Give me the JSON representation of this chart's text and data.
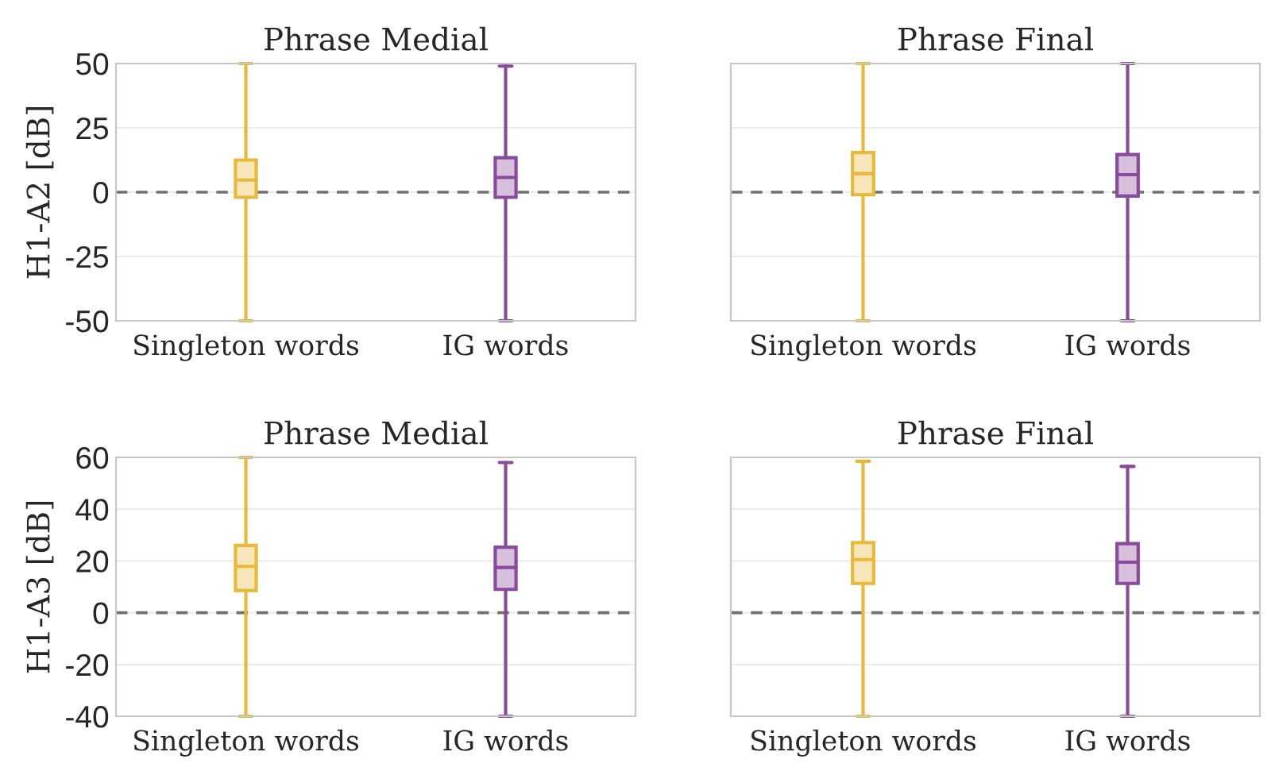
{
  "chart_data": [
    {
      "type": "box",
      "title": "Phrase Medial",
      "ylabel": "H1-A2 [dB]",
      "categories": [
        "Singleton words",
        "IG words"
      ],
      "colors": [
        "#e8b83a",
        "#8a4a9c"
      ],
      "boxes": [
        {
          "low": -50,
          "q1": -2,
          "median": 4.7,
          "q3": 12.5,
          "high": 50
        },
        {
          "low": -50,
          "q1": -2,
          "median": 5.7,
          "q3": 13.4,
          "high": 49
        }
      ],
      "ylim": [
        -50,
        50
      ],
      "yticks": [
        -50,
        -25,
        0,
        25,
        50
      ],
      "grid": "y",
      "ref_lines": [
        {
          "axis": "y",
          "value": 0,
          "color": "#707070",
          "line_style": "dashed"
        }
      ]
    },
    {
      "type": "box",
      "title": "Phrase Final",
      "categories": [
        "Singleton words",
        "IG words"
      ],
      "colors": [
        "#e8b83a",
        "#8a4a9c"
      ],
      "boxes": [
        {
          "low": -50,
          "q1": -1,
          "median": 7.2,
          "q3": 15.4,
          "high": 50
        },
        {
          "low": -50,
          "q1": -1.5,
          "median": 6.8,
          "q3": 14.6,
          "high": 50
        }
      ],
      "ylim": [
        -50,
        50
      ],
      "yticks": [
        -50,
        -25,
        0,
        25,
        50
      ],
      "grid": "y",
      "tick_labels": "x",
      "ref_lines": [
        {
          "axis": "y",
          "value": 0,
          "color": "#707070",
          "line_style": "dashed"
        }
      ]
    },
    {
      "type": "box",
      "title": "Phrase Medial",
      "ylabel": "H1-A3 [dB]",
      "categories": [
        "Singleton words",
        "IG words"
      ],
      "colors": [
        "#e8b83a",
        "#8a4a9c"
      ],
      "boxes": [
        {
          "low": -40,
          "q1": 8.6,
          "median": 17.9,
          "q3": 26,
          "high": 60
        },
        {
          "low": -40,
          "q1": 9,
          "median": 17.5,
          "q3": 25.3,
          "high": 58
        }
      ],
      "ylim": [
        -40,
        60
      ],
      "yticks": [
        -40,
        -20,
        0,
        20,
        40,
        60
      ],
      "grid": "y",
      "ref_lines": [
        {
          "axis": "y",
          "value": 0,
          "color": "#707070",
          "line_style": "dashed"
        }
      ]
    },
    {
      "type": "box",
      "title": "Phrase Final",
      "categories": [
        "Singleton words",
        "IG words"
      ],
      "colors": [
        "#e8b83a",
        "#8a4a9c"
      ],
      "boxes": [
        {
          "low": -40,
          "q1": 11.3,
          "median": 20.5,
          "q3": 27.1,
          "high": 58.5
        },
        {
          "low": -40,
          "q1": 11.3,
          "median": 19.5,
          "q3": 26.7,
          "high": 56.5
        }
      ],
      "ylim": [
        -40,
        60
      ],
      "yticks": [
        -40,
        -20,
        0,
        20,
        40,
        60
      ],
      "grid": "y",
      "tick_labels": "x",
      "ref_lines": [
        {
          "axis": "y",
          "value": 0,
          "color": "#707070",
          "line_style": "dashed"
        }
      ]
    }
  ]
}
